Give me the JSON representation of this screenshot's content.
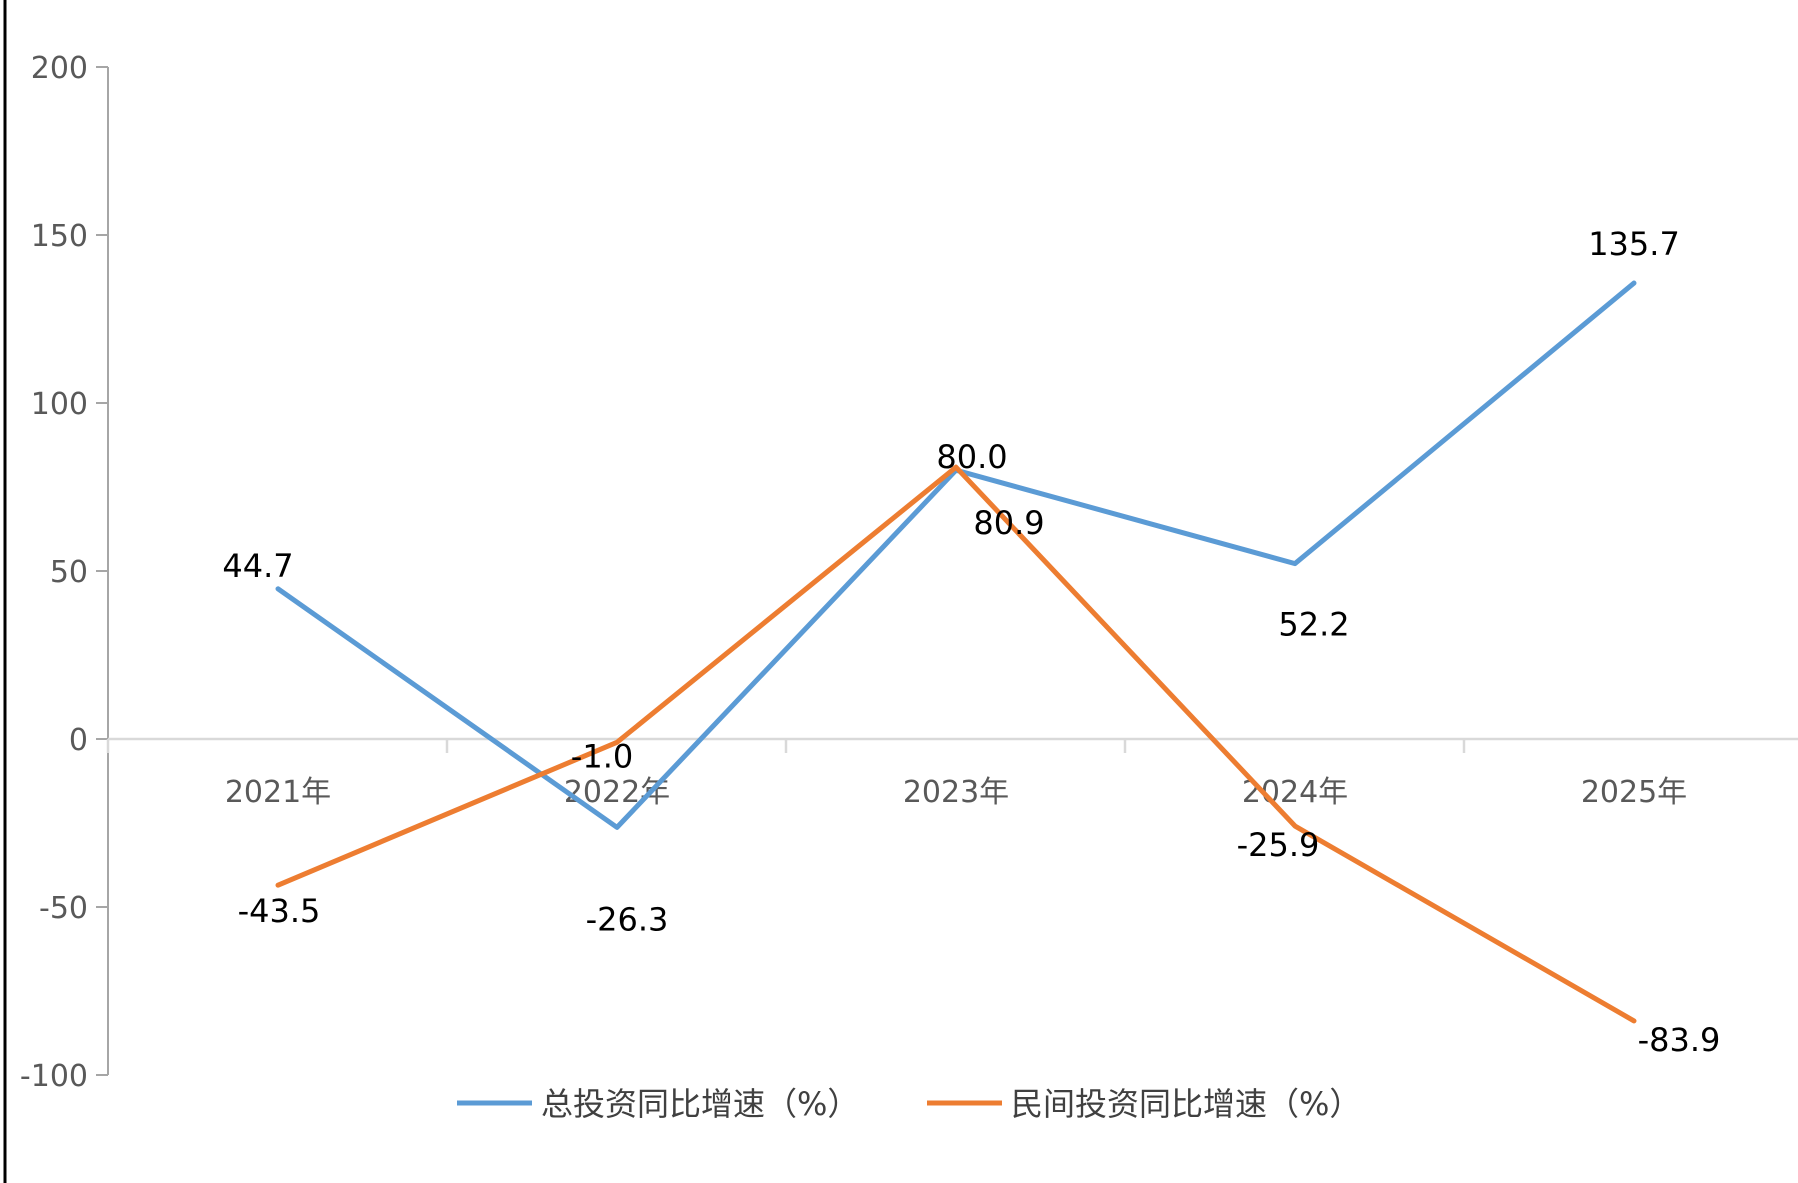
{
  "chart_data": {
    "type": "line",
    "categories": [
      "2021年",
      "2022年",
      "2023年",
      "2024年",
      "2025年"
    ],
    "series": [
      {
        "name": "总投资同比增速（%）",
        "color": "#5B9BD5",
        "values": [
          44.7,
          -26.3,
          80.0,
          52.2,
          135.7
        ],
        "labels": [
          "44.7",
          "-26.3",
          "80.0",
          "52.2",
          "135.7"
        ]
      },
      {
        "name": "民间投资同比增速（%）",
        "color": "#ED7D31",
        "values": [
          -43.5,
          -1.0,
          80.9,
          -25.9,
          -83.9
        ],
        "labels": [
          "-43.5",
          "-1.0",
          "80.9",
          "-25.9",
          "-83.9"
        ]
      }
    ],
    "yticks": [
      "200",
      "150",
      "100",
      "50",
      "0",
      "-50",
      "-100"
    ],
    "ylim": [
      -100,
      200
    ],
    "grid": false,
    "legend": "bottom"
  }
}
